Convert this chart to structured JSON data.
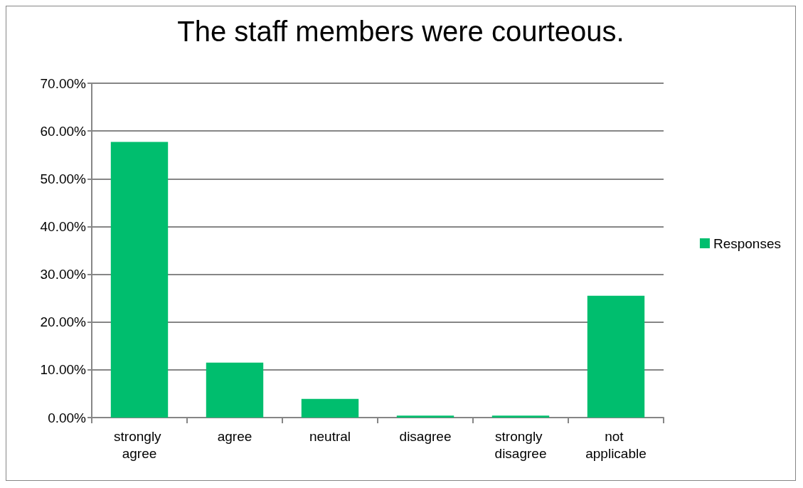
{
  "chart_data": {
    "type": "bar",
    "title": "The staff members were courteous.",
    "categories": [
      "strongly agree",
      "agree",
      "neutral",
      "disagree",
      "strongly disagree",
      "not applicable"
    ],
    "series": [
      {
        "name": "Responses",
        "color": "#00be6e",
        "values": [
          57.7,
          11.5,
          3.9,
          0.4,
          0.4,
          25.5
        ]
      }
    ],
    "ylim": [
      0,
      70
    ],
    "yticks": [
      {
        "value": 0,
        "label": "0.00%"
      },
      {
        "value": 10,
        "label": "10.00%"
      },
      {
        "value": 20,
        "label": "20.00%"
      },
      {
        "value": 30,
        "label": "30.00%"
      },
      {
        "value": 40,
        "label": "40.00%"
      },
      {
        "value": 50,
        "label": "50.00%"
      },
      {
        "value": 60,
        "label": "60.00%"
      },
      {
        "value": 70,
        "label": "70.00%"
      }
    ],
    "grid": "y",
    "legend": "right"
  }
}
